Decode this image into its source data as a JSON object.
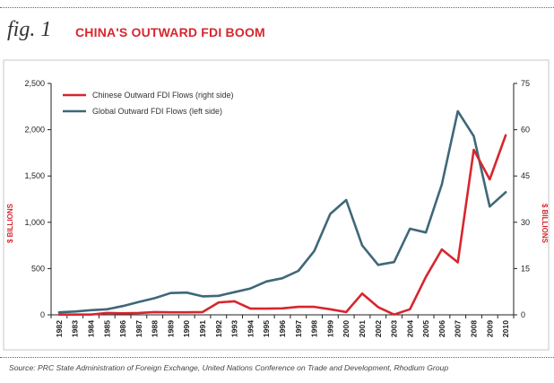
{
  "header": {
    "fig_label": "fig. 1",
    "title": "CHINA'S OUTWARD FDI BOOM"
  },
  "source": "Source: PRC State Administration of Foreign Exchange, United Nations Conference on Trade and Development, Rhodium Group",
  "colors": {
    "chinese": "#d7262e",
    "global": "#3f6879",
    "axis_label": "#d7262e",
    "frame": "#c7c7c7"
  },
  "chart_data": {
    "type": "line",
    "x": [
      "1982",
      "1983",
      "1984",
      "1985",
      "1986",
      "1987",
      "1988",
      "1989",
      "1990",
      "1991",
      "1992",
      "1993",
      "1994",
      "1995",
      "1996",
      "1997",
      "1998",
      "1999",
      "2000",
      "2001",
      "2002",
      "2003",
      "2004",
      "2005",
      "2006",
      "2007",
      "2008",
      "2009",
      "2010"
    ],
    "y_left": {
      "label": "$ BILLIONS",
      "ylim": [
        0,
        2500
      ],
      "ticks": [
        "0",
        "500",
        "1,000",
        "1,500",
        "2,000",
        "2,500"
      ]
    },
    "y_right": {
      "label": "$ BILLIONS",
      "ylim": [
        0,
        75
      ],
      "ticks": [
        "0",
        "15",
        "30",
        "45",
        "60",
        "75"
      ]
    },
    "series": [
      {
        "name": "Chinese Outward FDI Flows (right side)",
        "axis": "right",
        "values": [
          0.1,
          0.1,
          0.1,
          0.6,
          0.5,
          0.6,
          0.9,
          0.8,
          0.8,
          0.9,
          4.0,
          4.4,
          2.0,
          2.0,
          2.1,
          2.6,
          2.6,
          1.8,
          0.9,
          6.9,
          2.5,
          0.1,
          1.8,
          12.3,
          21.2,
          17.0,
          53.5,
          43.9,
          58.2
        ]
      },
      {
        "name": "Global Outward FDI Flows (left side)",
        "axis": "left",
        "values": [
          27,
          36,
          50,
          60,
          95,
          140,
          180,
          235,
          240,
          200,
          205,
          245,
          285,
          360,
          395,
          475,
          690,
          1090,
          1240,
          750,
          540,
          570,
          930,
          890,
          1410,
          2200,
          1930,
          1170,
          1325
        ]
      }
    ],
    "legend_position": "top-left",
    "grid": false
  }
}
